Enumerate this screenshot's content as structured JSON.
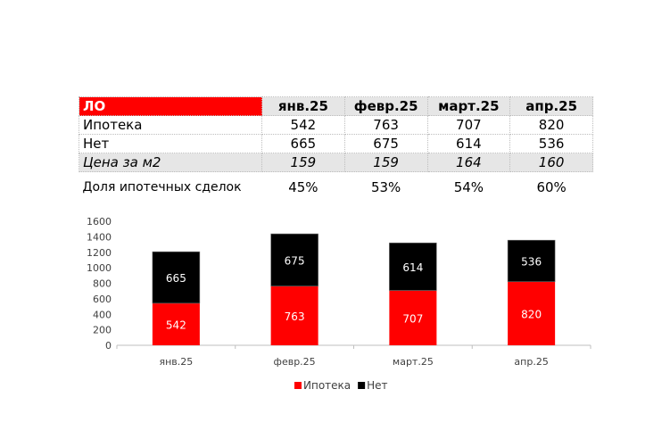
{
  "table": {
    "corner": "ЛО",
    "columns": [
      "янв.25",
      "февр.25",
      "март.25",
      "апр.25"
    ],
    "rows": [
      {
        "label": "Ипотека",
        "values": [
          "542",
          "763",
          "707",
          "820"
        ]
      },
      {
        "label": "Нет",
        "values": [
          "665",
          "675",
          "614",
          "536"
        ]
      },
      {
        "label": "Цена за м2",
        "values": [
          "159",
          "159",
          "164",
          "160"
        ]
      },
      {
        "label": "Доля ипотечных сделок",
        "values": [
          "45%",
          "53%",
          "54%",
          "60%"
        ]
      }
    ]
  },
  "chart_data": {
    "type": "bar",
    "stacked": true,
    "categories": [
      "янв.25",
      "февр.25",
      "март.25",
      "апр.25"
    ],
    "series": [
      {
        "name": "Ипотека",
        "values": [
          542,
          763,
          707,
          820
        ],
        "color": "#ff0000"
      },
      {
        "name": "Нет",
        "values": [
          665,
          675,
          614,
          536
        ],
        "color": "#000000"
      }
    ],
    "ylim": [
      0,
      1600
    ],
    "yticks": [
      0,
      200,
      400,
      600,
      800,
      1000,
      1200,
      1400,
      1600
    ],
    "grid": false,
    "legend": "bottom",
    "data_labels": true
  }
}
